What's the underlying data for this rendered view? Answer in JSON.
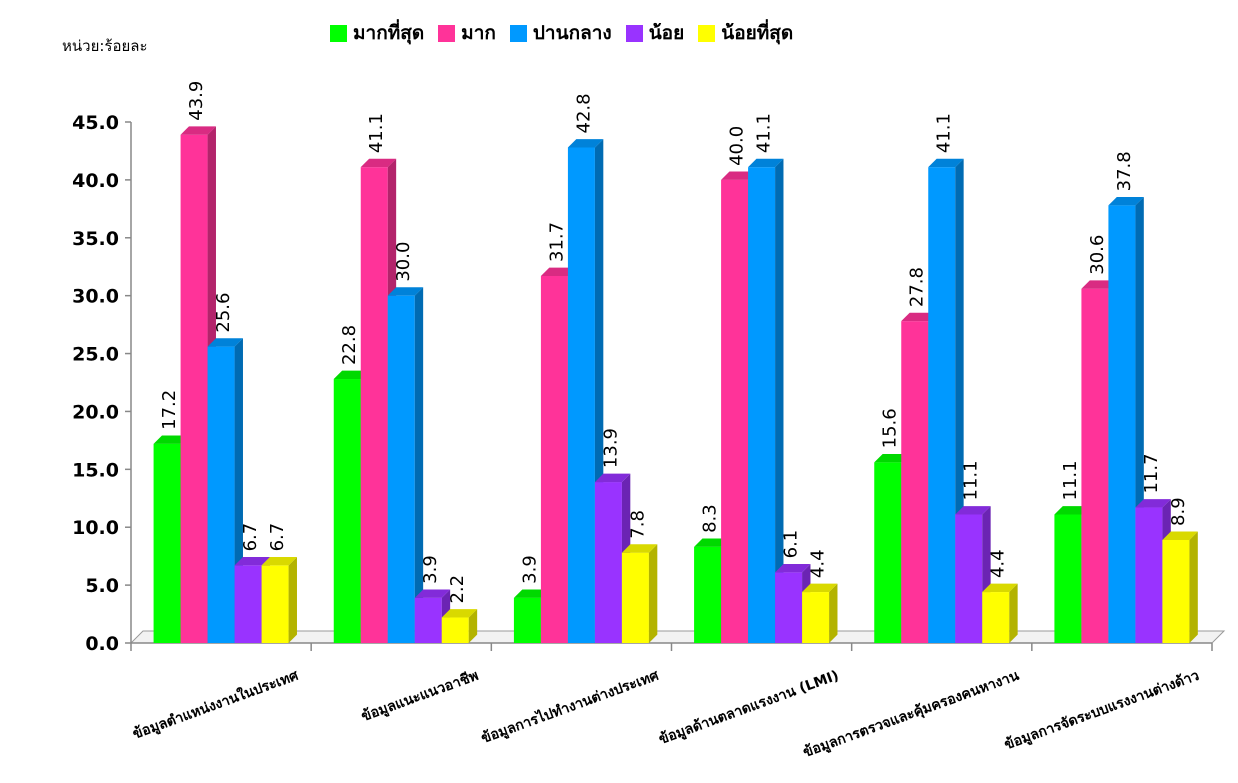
{
  "chart_data": {
    "type": "bar",
    "unit_label": "หน่วย:ร้อยละ",
    "title": "",
    "xlabel": "",
    "ylabel": "",
    "ylim": [
      0,
      45
    ],
    "yticks": [
      "0.0",
      "5.0",
      "10.0",
      "15.0",
      "20.0",
      "25.0",
      "30.0",
      "35.0",
      "40.0",
      "45.0"
    ],
    "legend_position": "top",
    "categories": [
      "ข้อมูลตำแหน่งงานในประเทศ",
      "ข้อมูลแนะแนวอาชีพ",
      "ข้อมูลการไปทำงานต่างประเทศ",
      "ข้อมูลด้านตลาดแรงงาน (LMI)",
      "ข้อมูลการตรวจและคุ้มครองคนหางาน",
      "ข้อมูลการจัดระบบแรงงานต่างด้าว"
    ],
    "series": [
      {
        "name": "มากที่สุด",
        "color": "#00ff00",
        "values": [
          17.2,
          22.8,
          3.9,
          8.3,
          15.6,
          11.1
        ]
      },
      {
        "name": "มาก",
        "color": "#ff3399",
        "values": [
          43.9,
          41.1,
          31.7,
          40.0,
          27.8,
          30.6
        ]
      },
      {
        "name": "ปานกลาง",
        "color": "#0099ff",
        "values": [
          25.6,
          30.0,
          42.8,
          41.1,
          41.1,
          37.8
        ]
      },
      {
        "name": "น้อย",
        "color": "#9933ff",
        "values": [
          6.7,
          3.9,
          13.9,
          6.1,
          11.1,
          11.7
        ]
      },
      {
        "name": "น้อยที่สุด",
        "color": "#ffff00",
        "values": [
          6.7,
          2.2,
          7.8,
          4.4,
          4.4,
          8.9
        ]
      }
    ],
    "value_labels": [
      [
        "17.2",
        "22.8",
        "3.9",
        "8.3",
        "15.6",
        "11.1"
      ],
      [
        "43.9",
        "41.1",
        "31.7",
        "40.0",
        "27.8",
        "30.6"
      ],
      [
        "25.6",
        "30.0",
        "42.8",
        "41.1",
        "41.1",
        "37.8"
      ],
      [
        "6.7",
        "3.9",
        "13.9",
        "6.1",
        "11.1",
        "11.7"
      ],
      [
        "6.7",
        "2.2",
        "7.8",
        "4.4",
        "4.4",
        "8.9"
      ]
    ]
  }
}
